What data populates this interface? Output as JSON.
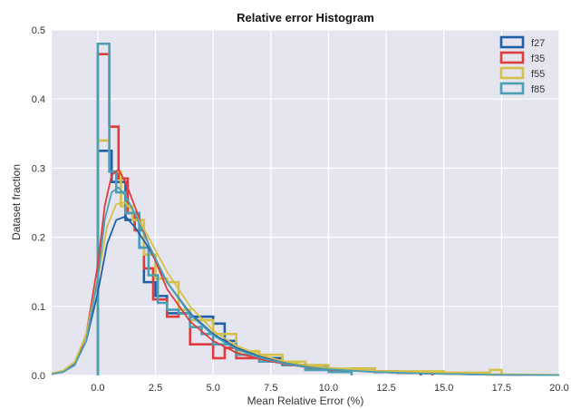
{
  "chart_data": {
    "type": "histogram",
    "title": "Relative error Histogram",
    "xlabel": "Mean Relative Error (%)",
    "ylabel": "Dataset fraction",
    "xlim": [
      -2,
      20
    ],
    "ylim": [
      0,
      0.5
    ],
    "xticks": [
      0.0,
      2.5,
      5.0,
      7.5,
      10.0,
      12.5,
      15.0,
      17.5,
      20.0
    ],
    "xtick_labels": [
      "0.0",
      "2.5",
      "5.0",
      "7.5",
      "10.0",
      "12.5",
      "15.0",
      "17.5",
      "20.0"
    ],
    "yticks": [
      0.0,
      0.1,
      0.2,
      0.3,
      0.4,
      0.5
    ],
    "ytick_labels": [
      "0.0",
      "0.1",
      "0.2",
      "0.3",
      "0.4",
      "0.5"
    ],
    "grid": true,
    "background_color": "#e5e5f0",
    "legend_position": "top-right",
    "series": [
      {
        "name": "f27",
        "color": "#1f5fa8",
        "bin_edges": [
          0,
          0.6,
          1.2,
          1.8,
          2.0,
          2.5,
          3.0,
          4.0,
          5.0,
          5.5,
          6.0,
          7.0,
          8.0,
          9.0,
          9.5,
          10.0,
          11.0,
          12.0,
          13.0,
          14.0
        ],
        "heights": [
          0.325,
          0.28,
          0.225,
          0.185,
          0.135,
          0.115,
          0.09,
          0.085,
          0.075,
          0.05,
          0.03,
          0.025,
          0.015,
          0.01,
          0.012,
          0.008,
          0.01,
          0.005,
          0.004
        ],
        "kde": [
          [
            -2,
            0.003
          ],
          [
            -1.5,
            0.006
          ],
          [
            -1,
            0.016
          ],
          [
            -0.5,
            0.05
          ],
          [
            0,
            0.12
          ],
          [
            0.4,
            0.19
          ],
          [
            0.8,
            0.225
          ],
          [
            1.2,
            0.23
          ],
          [
            1.6,
            0.215
          ],
          [
            2.2,
            0.185
          ],
          [
            3,
            0.135
          ],
          [
            4,
            0.09
          ],
          [
            5,
            0.06
          ],
          [
            6,
            0.04
          ],
          [
            7,
            0.028
          ],
          [
            8,
            0.02
          ],
          [
            9,
            0.014
          ],
          [
            10,
            0.01
          ],
          [
            12,
            0.005
          ],
          [
            14,
            0.003
          ],
          [
            17,
            0.001
          ],
          [
            20,
            0.0005
          ]
        ]
      },
      {
        "name": "f35",
        "color": "#e03c3c",
        "bin_edges": [
          0,
          0.5,
          0.9,
          1.3,
          1.6,
          2.0,
          2.4,
          3.0,
          3.5,
          4.0,
          5.0,
          5.5,
          6.0,
          7.0,
          8.0,
          9.0,
          10.0,
          11.0,
          12.0,
          13.0,
          14.5
        ],
        "heights": [
          0.465,
          0.36,
          0.285,
          0.235,
          0.21,
          0.155,
          0.11,
          0.085,
          0.09,
          0.045,
          0.025,
          0.04,
          0.025,
          0.02,
          0.015,
          0.01,
          0.008,
          0.01,
          0.006,
          0.004
        ],
        "kde": [
          [
            -2,
            0.002
          ],
          [
            -1.5,
            0.005
          ],
          [
            -1,
            0.015
          ],
          [
            -0.5,
            0.06
          ],
          [
            0,
            0.16
          ],
          [
            0.3,
            0.245
          ],
          [
            0.6,
            0.29
          ],
          [
            0.9,
            0.298
          ],
          [
            1.2,
            0.28
          ],
          [
            1.6,
            0.245
          ],
          [
            2.2,
            0.19
          ],
          [
            3,
            0.125
          ],
          [
            4,
            0.078
          ],
          [
            5,
            0.05
          ],
          [
            6,
            0.033
          ],
          [
            7,
            0.024
          ],
          [
            8,
            0.017
          ],
          [
            9,
            0.012
          ],
          [
            10,
            0.009
          ],
          [
            12,
            0.005
          ],
          [
            14,
            0.003
          ],
          [
            17,
            0.001
          ],
          [
            20,
            0.0005
          ]
        ]
      },
      {
        "name": "f55",
        "color": "#d4c14a",
        "bin_edges": [
          0,
          0.5,
          1.0,
          1.5,
          2.0,
          2.5,
          3.0,
          3.5,
          4.0,
          5.0,
          6.0,
          7.0,
          8.0,
          9.0,
          10.0,
          12.0,
          15.0,
          17.0,
          17.5
        ],
        "heights": [
          0.34,
          0.295,
          0.245,
          0.225,
          0.175,
          0.14,
          0.135,
          0.095,
          0.08,
          0.06,
          0.035,
          0.03,
          0.02,
          0.015,
          0.01,
          0.006,
          0.004,
          0.008
        ],
        "kde": [
          [
            -2,
            0.003
          ],
          [
            -1.5,
            0.007
          ],
          [
            -1,
            0.02
          ],
          [
            -0.5,
            0.06
          ],
          [
            0,
            0.14
          ],
          [
            0.4,
            0.215
          ],
          [
            0.8,
            0.248
          ],
          [
            1.2,
            0.25
          ],
          [
            1.6,
            0.235
          ],
          [
            2.2,
            0.2
          ],
          [
            3,
            0.15
          ],
          [
            4,
            0.1
          ],
          [
            5,
            0.065
          ],
          [
            6,
            0.043
          ],
          [
            7,
            0.03
          ],
          [
            8,
            0.021
          ],
          [
            9,
            0.015
          ],
          [
            10,
            0.011
          ],
          [
            12,
            0.006
          ],
          [
            14,
            0.004
          ],
          [
            17,
            0.002
          ],
          [
            20,
            0.001
          ]
        ]
      },
      {
        "name": "f85",
        "color": "#4a9fb5",
        "bin_edges": [
          0,
          0.5,
          0.8,
          1.2,
          1.8,
          2.2,
          2.6,
          3.0,
          3.5,
          4.0,
          4.5,
          5.0,
          6.0,
          7.0,
          8.0,
          9.0,
          10.0,
          11.0
        ],
        "heights": [
          0.48,
          0.295,
          0.265,
          0.235,
          0.185,
          0.145,
          0.105,
          0.095,
          0.09,
          0.07,
          0.06,
          0.045,
          0.03,
          0.02,
          0.015,
          0.008,
          0.005
        ],
        "kde": [
          [
            -2,
            0.002
          ],
          [
            -1.5,
            0.005
          ],
          [
            -1,
            0.015
          ],
          [
            -0.5,
            0.05
          ],
          [
            0,
            0.14
          ],
          [
            0.3,
            0.225
          ],
          [
            0.6,
            0.265
          ],
          [
            0.9,
            0.272
          ],
          [
            1.2,
            0.26
          ],
          [
            1.6,
            0.235
          ],
          [
            2.2,
            0.19
          ],
          [
            3,
            0.135
          ],
          [
            4,
            0.088
          ],
          [
            5,
            0.058
          ],
          [
            6,
            0.038
          ],
          [
            7,
            0.026
          ],
          [
            8,
            0.018
          ],
          [
            9,
            0.012
          ],
          [
            10,
            0.009
          ],
          [
            12,
            0.005
          ],
          [
            14,
            0.003
          ],
          [
            17,
            0.001
          ],
          [
            20,
            0.0005
          ]
        ]
      }
    ]
  }
}
